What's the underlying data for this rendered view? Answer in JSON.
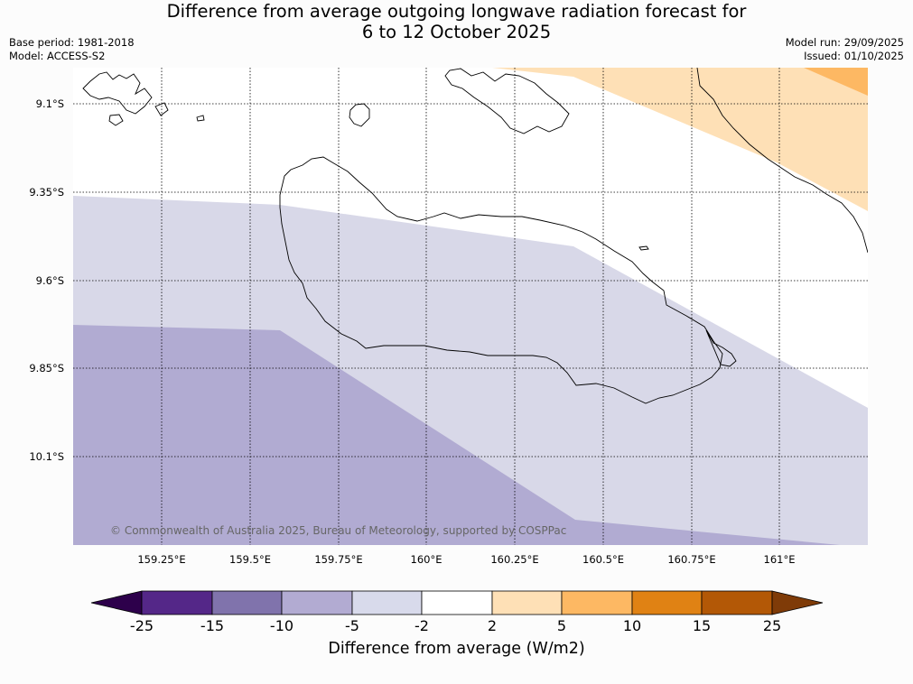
{
  "title": {
    "line1": "Difference from average outgoing longwave radiation forecast for",
    "line2": "6 to 12 October 2025"
  },
  "meta": {
    "base_period": "Base period: 1981-2018",
    "model": "Model: ACCESS-S2",
    "model_run": "Model run: 29/09/2025",
    "issued": "Issued: 01/10/2025"
  },
  "map": {
    "lat_labels": [
      "9.1°S",
      "9.35°S",
      "9.6°S",
      "9.85°S",
      "10.1°S"
    ],
    "lon_labels": [
      "159.25°E",
      "159.5°E",
      "159.75°E",
      "160°E",
      "160.25°E",
      "160.5°E",
      "160.75°E",
      "161°E"
    ],
    "copyright": "© Commonwealth of Australia 2025, Bureau of Meteorology, supported by COSPPac",
    "colors": {
      "light_purple": "#d8d8e8",
      "mid_purple": "#b1abd2",
      "light_orange": "#fee0b6",
      "mid_orange": "#fdb863"
    }
  },
  "colorbar": {
    "label": "Difference from average (W/m2)",
    "ticks": [
      "-25",
      "-15",
      "-10",
      "-5",
      "-2",
      "2",
      "5",
      "10",
      "15",
      "25"
    ],
    "colors": [
      "#2d004b",
      "#542788",
      "#8073ac",
      "#b2abd2",
      "#d8daeb",
      "#ffffff",
      "#fee0b6",
      "#fdb863",
      "#e08214",
      "#b35806",
      "#7f3b08"
    ]
  }
}
